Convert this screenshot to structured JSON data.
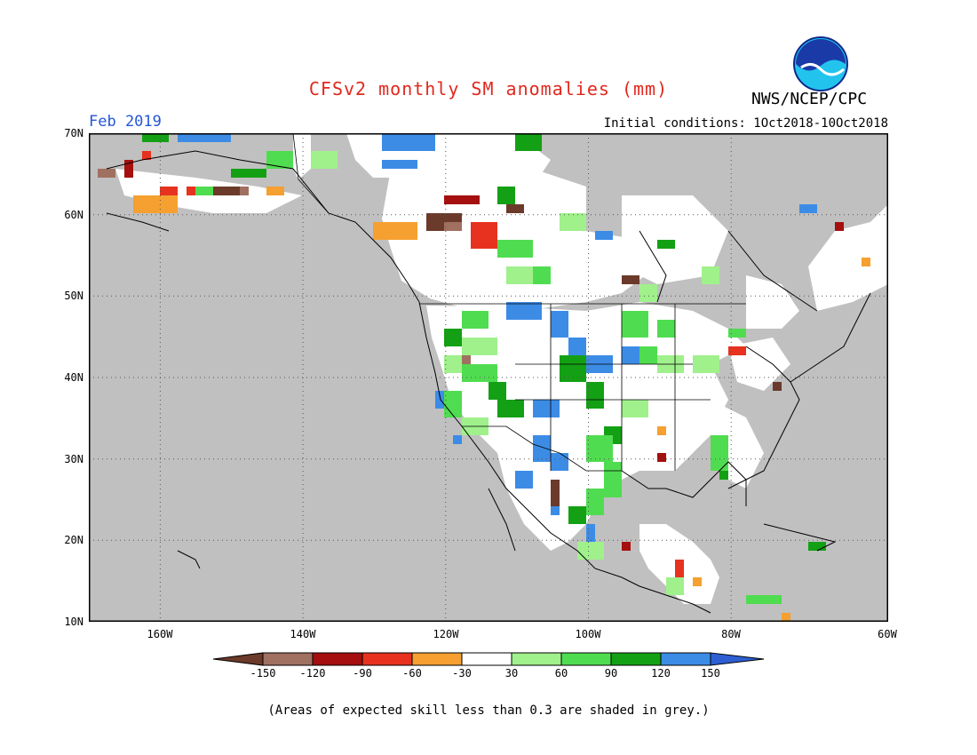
{
  "header": {
    "title": "CFSv2 monthly SM anomalies (mm)",
    "agency": "NWS/NCEP/CPC",
    "logo_text": "NOAA",
    "month": "Feb 2019",
    "initial_conditions": "Initial conditions: 1Oct2018-10Oct2018"
  },
  "map": {
    "lon_range": [
      -172,
      -60
    ],
    "lat_range": [
      10,
      70
    ],
    "lat_labels": [
      "70N",
      "60N",
      "50N",
      "40N",
      "30N",
      "20N",
      "10N"
    ],
    "lon_labels": [
      "160W",
      "140W",
      "120W",
      "100W",
      "80W",
      "60W"
    ],
    "background_grey": "#c0c0c0",
    "grid": true
  },
  "colorbar": {
    "labels": [
      "-150",
      "-120",
      "-90",
      "-60",
      "-30",
      "30",
      "60",
      "90",
      "120",
      "150"
    ],
    "colors": [
      "#6b3a2a",
      "#a07060",
      "#a50f0f",
      "#e6321e",
      "#f5a030",
      "#ffffff",
      "#a0f08c",
      "#50dc50",
      "#14a014",
      "#3c8ce6",
      "#2d5fd2"
    ]
  },
  "footnote": "(Areas of expected skill less than 0.3 are shaded in grey.)"
}
